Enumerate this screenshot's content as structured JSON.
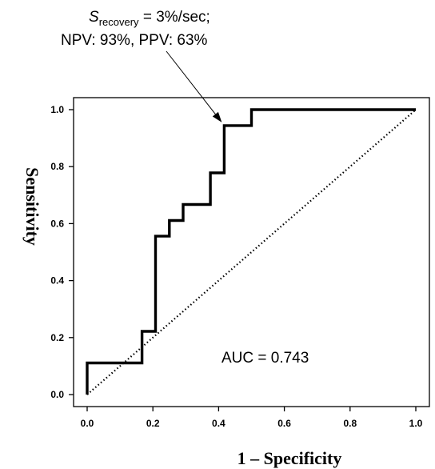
{
  "chart_data": {
    "type": "line",
    "title": "",
    "xlabel": "1 – Specificity",
    "ylabel": "Sensitivity",
    "xlim": [
      0,
      1
    ],
    "ylim": [
      0,
      1
    ],
    "x_ticks": [
      "0.0",
      "0.2",
      "0.4",
      "0.6",
      "0.8",
      "1.0"
    ],
    "y_ticks": [
      "0.0",
      "0.2",
      "0.4",
      "0.6",
      "0.8",
      "1.0"
    ],
    "grid": false,
    "series": [
      {
        "style": "solid-step",
        "color": "#000000",
        "x": [
          0.0,
          0.0,
          0.167,
          0.167,
          0.208,
          0.208,
          0.25,
          0.25,
          0.292,
          0.292,
          0.375,
          0.375,
          0.417,
          0.417,
          0.5,
          0.5,
          1.0
        ],
        "y": [
          0.0,
          0.111,
          0.111,
          0.222,
          0.222,
          0.556,
          0.556,
          0.611,
          0.611,
          0.667,
          0.667,
          0.778,
          0.778,
          0.944,
          0.944,
          1.0,
          1.0
        ]
      },
      {
        "style": "dotted",
        "color": "#000000",
        "x": [
          0,
          1
        ],
        "y": [
          0,
          1
        ]
      }
    ],
    "annotations": {
      "arrow_point": {
        "x": 0.417,
        "y": 0.944
      },
      "label_symbol": "S",
      "label_subscript": "recovery",
      "label_rest": " = 3%/sec;",
      "label_line2": "NPV: 93%, PPV: 63%",
      "auc": "AUC = 0.743"
    }
  }
}
